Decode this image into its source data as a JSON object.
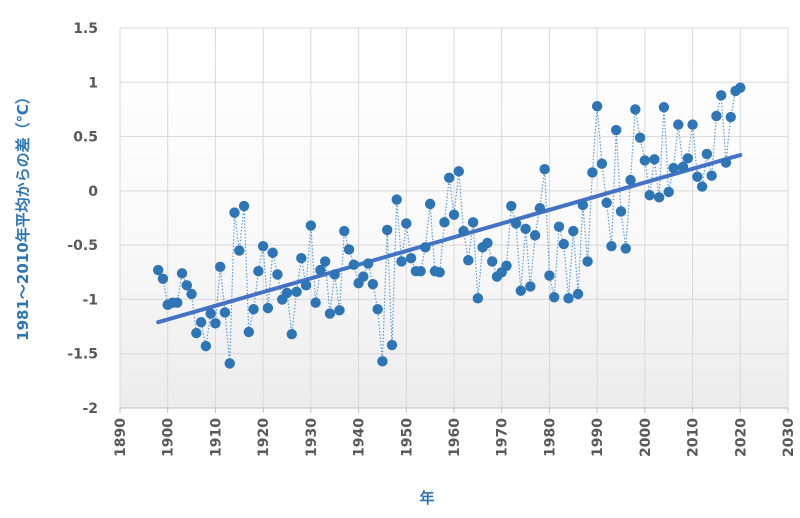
{
  "chart_data": {
    "type": "scatter",
    "xlabel": "年",
    "ylabel": "1981〜2010年平均からの差（℃）",
    "xlim": [
      1890,
      2030
    ],
    "ylim": [
      -2,
      1.5
    ],
    "xticks": [
      "1890",
      "1900",
      "1910",
      "1920",
      "1930",
      "1940",
      "1950",
      "1960",
      "1970",
      "1980",
      "1990",
      "2000",
      "2010",
      "2020",
      "2030"
    ],
    "yticks": [
      "1.5",
      "1",
      "0.5",
      "0",
      "-0.5",
      "-1",
      "-1.5",
      "-2"
    ],
    "grid": true,
    "colors": {
      "points": "#2e75b6",
      "connector": "#5b9bd5",
      "trend": "#4472c4",
      "axis_title": "#2e75b6",
      "tick_text": "#595959"
    },
    "series": [
      {
        "x": [
          1898,
          1899,
          1900,
          1901,
          1902,
          1903,
          1904,
          1905,
          1906,
          1907,
          1908,
          1909,
          1910,
          1911,
          1912,
          1913,
          1914,
          1915,
          1916,
          1917,
          1918,
          1919,
          1920,
          1921,
          1922,
          1923,
          1924,
          1925,
          1926,
          1927,
          1928,
          1929,
          1930,
          1931,
          1932,
          1933,
          1934,
          1935,
          1936,
          1937,
          1938,
          1939,
          1940,
          1941,
          1942,
          1943,
          1944,
          1945,
          1946,
          1947,
          1948,
          1949,
          1950,
          1951,
          1952,
          1953,
          1954,
          1955,
          1956,
          1957,
          1958,
          1959,
          1960,
          1961,
          1962,
          1963,
          1964,
          1965,
          1966,
          1967,
          1968,
          1969,
          1970,
          1971,
          1972,
          1973,
          1974,
          1975,
          1976,
          1977,
          1978,
          1979,
          1980,
          1981,
          1982,
          1983,
          1984,
          1985,
          1986,
          1987,
          1988,
          1989,
          1990,
          1991,
          1992,
          1993,
          1994,
          1995,
          1996,
          1997,
          1998,
          1999,
          2000,
          2001,
          2002,
          2003,
          2004,
          2005,
          2006,
          2007,
          2008,
          2009,
          2010,
          2011,
          2012,
          2013,
          2014,
          2015,
          2016,
          2017,
          2018,
          2019,
          2020
        ],
        "y": [
          -0.73,
          -0.81,
          -1.05,
          -1.03,
          -1.03,
          -0.76,
          -0.87,
          -0.95,
          -1.31,
          -1.21,
          -1.43,
          -1.13,
          -1.22,
          -0.7,
          -1.12,
          -1.59,
          -0.2,
          -0.55,
          -0.14,
          -1.3,
          -1.09,
          -0.74,
          -0.51,
          -1.08,
          -0.57,
          -0.77,
          -1.0,
          -0.94,
          -1.32,
          -0.93,
          -0.62,
          -0.87,
          -0.32,
          -1.03,
          -0.73,
          -0.65,
          -1.13,
          -0.77,
          -1.1,
          -0.37,
          -0.54,
          -0.68,
          -0.85,
          -0.79,
          -0.67,
          -0.86,
          -1.09,
          -1.57,
          -0.36,
          -1.42,
          -0.08,
          -0.65,
          -0.3,
          -0.62,
          -0.74,
          -0.74,
          -0.52,
          -0.12,
          -0.74,
          -0.75,
          -0.29,
          0.12,
          -0.22,
          0.18,
          -0.37,
          -0.64,
          -0.29,
          -0.99,
          -0.52,
          -0.48,
          -0.65,
          -0.79,
          -0.75,
          -0.69,
          -0.14,
          -0.3,
          -0.92,
          -0.35,
          -0.88,
          -0.41,
          -0.16,
          0.2,
          -0.78,
          -0.98,
          -0.33,
          -0.49,
          -0.99,
          -0.37,
          -0.95,
          -0.13,
          -0.65,
          0.17,
          0.78,
          0.25,
          -0.11,
          -0.51,
          0.56,
          -0.19,
          -0.53,
          0.1,
          0.75,
          0.49,
          0.28,
          -0.04,
          0.29,
          -0.06,
          0.77,
          -0.01,
          0.21,
          0.61,
          0.22,
          0.3,
          0.61,
          0.13,
          0.04,
          0.34,
          0.14,
          0.69,
          0.88,
          0.26,
          0.68,
          0.92,
          0.95
        ]
      }
    ],
    "trend": {
      "x": [
        1898,
        2020
      ],
      "y": [
        -1.21,
        0.33
      ]
    }
  }
}
